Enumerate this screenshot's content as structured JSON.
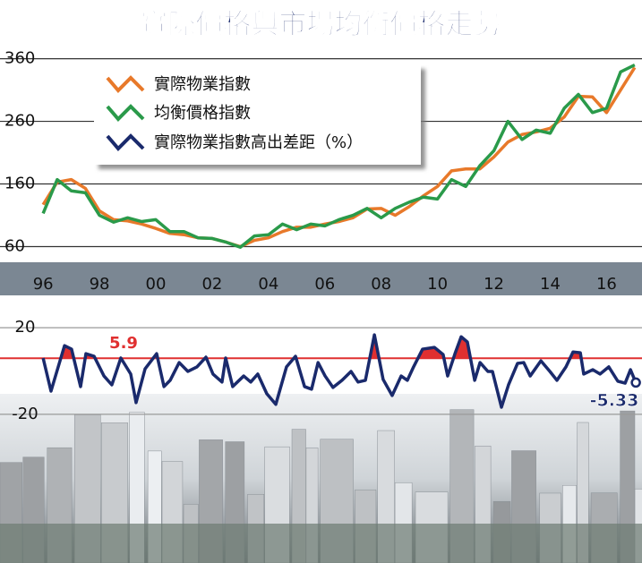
{
  "chart_data": [
    {
      "type": "line",
      "title": "實際價格與市場均衡價格走勢",
      "x": [
        1996,
        1996.5,
        1997,
        1997.5,
        1998,
        1998.5,
        1999,
        1999.5,
        2000,
        2000.5,
        2001,
        2001.5,
        2002,
        2002.5,
        2003,
        2003.5,
        2004,
        2004.5,
        2005,
        2005.5,
        2006,
        2006.5,
        2007,
        2007.5,
        2008,
        2008.5,
        2009,
        2009.5,
        2010,
        2010.5,
        2011,
        2011.5,
        2012,
        2012.5,
        2013,
        2013.5,
        2014,
        2014.5,
        2015,
        2015.5,
        2016,
        2016.5,
        2017
      ],
      "series": [
        {
          "name": "實際物業指數",
          "color": "#e8792a",
          "values": [
            127,
            163,
            167,
            153,
            117,
            103,
            101,
            96,
            89,
            81,
            79,
            74,
            73,
            67,
            60,
            70,
            74,
            84,
            91,
            91,
            96,
            100,
            106,
            120,
            121,
            110,
            124,
            141,
            156,
            181,
            184,
            184,
            203,
            227,
            239,
            243,
            249,
            267,
            300,
            299,
            274,
            310,
            346
          ]
        },
        {
          "name": "均衡價格指數",
          "color": "#2a9a4a",
          "values": [
            113,
            167,
            149,
            146,
            110,
            99,
            106,
            100,
            103,
            84,
            84,
            74,
            73,
            67,
            59,
            77,
            79,
            96,
            87,
            96,
            93,
            103,
            110,
            121,
            106,
            121,
            131,
            139,
            136,
            167,
            156,
            189,
            213,
            260,
            231,
            246,
            241,
            281,
            303,
            274,
            281,
            339,
            350
          ]
        }
      ],
      "xlim": [
        1995.9,
        2017.1
      ],
      "xticks": [
        {
          "value": 1996,
          "label": "96"
        },
        {
          "value": 1998,
          "label": "98"
        },
        {
          "value": 2000,
          "label": "00"
        },
        {
          "value": 2002,
          "label": "02"
        },
        {
          "value": 2004,
          "label": "04"
        },
        {
          "value": 2006,
          "label": "06"
        },
        {
          "value": 2008,
          "label": "08"
        },
        {
          "value": 2010,
          "label": "10"
        },
        {
          "value": 2012,
          "label": "12"
        },
        {
          "value": 2014,
          "label": "14"
        },
        {
          "value": 2016,
          "label": "16"
        }
      ],
      "ylim": [
        45,
        368
      ],
      "yticks": [
        60,
        160,
        260,
        360
      ],
      "grid": true
    },
    {
      "type": "line",
      "x": [
        1996.0,
        1996.28,
        1996.76,
        1997.01,
        1997.33,
        1997.52,
        1997.81,
        1998.16,
        1998.44,
        1998.76,
        1999.11,
        1999.3,
        1999.62,
        2000.03,
        2000.29,
        2000.51,
        2000.83,
        2001.14,
        2001.46,
        2001.78,
        2002.03,
        2002.35,
        2002.48,
        2002.73,
        2003.12,
        2003.37,
        2003.62,
        2003.94,
        2004.26,
        2004.64,
        2004.96,
        2005.28,
        2005.53,
        2005.76,
        2006.01,
        2006.29,
        2006.61,
        2006.93,
        2007.18,
        2007.44,
        2007.76,
        2008.07,
        2008.39,
        2008.71,
        2008.93,
        2009.15,
        2009.47,
        2009.89,
        2010.2,
        2010.36,
        2010.62,
        2010.84,
        2011.06,
        2011.32,
        2011.51,
        2011.79,
        2011.95,
        2012.27,
        2012.52,
        2012.84,
        2013.06,
        2013.29,
        2013.67,
        2013.99,
        2014.24,
        2014.56,
        2014.81,
        2015.07,
        2015.19,
        2015.51,
        2015.77,
        2016.08,
        2016.4,
        2016.66,
        2016.85,
        2017.04
      ],
      "series": [
        {
          "name": "實際物業指數高出差距（%）",
          "color": "#1a2a6c",
          "values": [
            6.0,
            -9.3,
            11.7,
            10.1,
            -7.2,
            8.0,
            6.8,
            -2.3,
            -6.4,
            6.0,
            -1.4,
            -14.6,
            1.0,
            8.0,
            -7.2,
            -4.3,
            3.9,
            -0.2,
            1.9,
            6.4,
            -1.4,
            -5.1,
            6.0,
            -7.2,
            -2.3,
            -5.1,
            -1.4,
            -10.5,
            -15.4,
            1.9,
            6.8,
            -7.2,
            -8.4,
            3.9,
            -2.3,
            -7.6,
            -4.3,
            -0.2,
            -5.1,
            -4.3,
            16.7,
            -3.9,
            -11.3,
            -2.3,
            -4.3,
            1.9,
            10.1,
            10.9,
            7.6,
            -2.3,
            8.0,
            15.8,
            13.4,
            -4.3,
            3.9,
            -0.2,
            -0.2,
            -16.7,
            -6.4,
            3.5,
            3.9,
            -2.3,
            4.7,
            -0.2,
            -4.3,
            1.9,
            8.8,
            8.4,
            -1.4,
            0.6,
            -1.4,
            1.9,
            -4.7,
            -5.6,
            0.6,
            -5.33
          ]
        }
      ],
      "threshold": 5.9,
      "threshold_color": "#e03030",
      "xlim": [
        1995.9,
        2017.1
      ],
      "ylim": [
        -25,
        25
      ],
      "yticks": [
        20,
        -20
      ],
      "grid": true
    }
  ]
}
